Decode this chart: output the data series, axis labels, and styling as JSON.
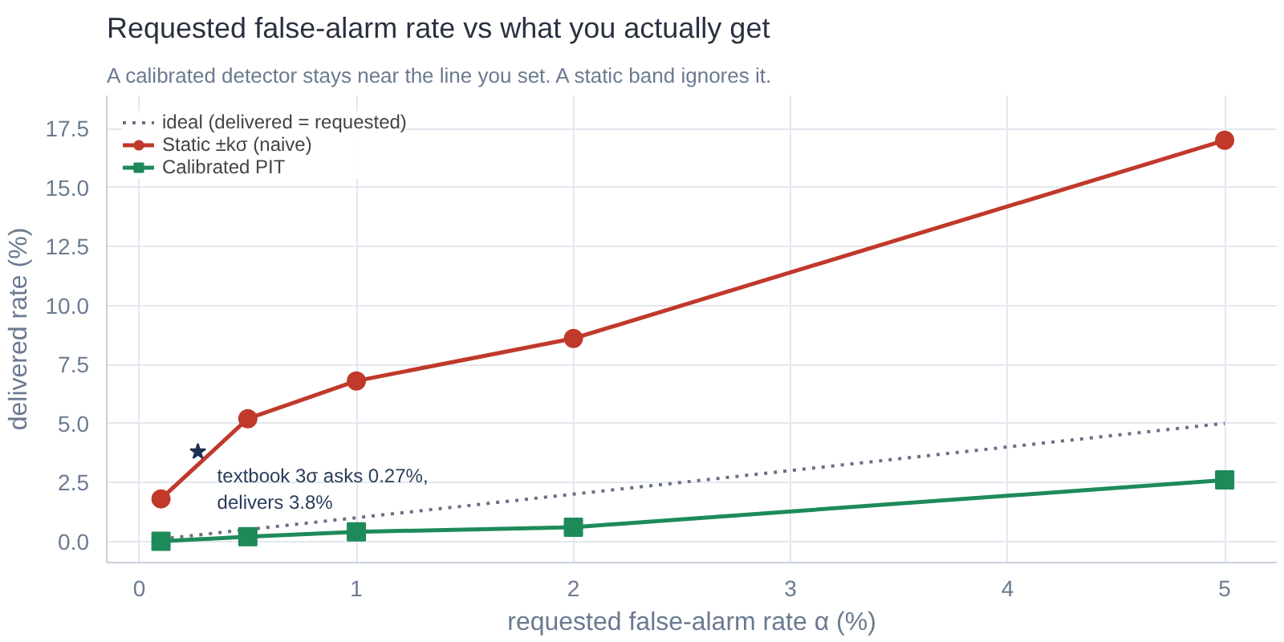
{
  "chart_data": {
    "type": "line",
    "title": "Requested false-alarm rate vs what you actually get",
    "subtitle": "A calibrated detector stays near the line you set. A static band ignores it.",
    "xlabel": "requested false-alarm rate α (%)",
    "ylabel": "delivered rate (%)",
    "x": [
      0.1,
      0.5,
      1,
      2,
      5
    ],
    "series": [
      {
        "name": "ideal (delivered = requested)",
        "color": "#6b6f85",
        "x": [
          0.1,
          5
        ],
        "values": [
          0.1,
          5
        ],
        "line_style": "dotted",
        "marker": "none"
      },
      {
        "name": "Static ±kσ (naive)",
        "color": "#c0392b",
        "values": [
          1.8,
          5.2,
          6.8,
          8.6,
          17.0
        ],
        "marker": "circle",
        "line_style": "solid"
      },
      {
        "name": "Calibrated PIT",
        "color": "#1e8a5a",
        "values": [
          0.0,
          0.2,
          0.4,
          0.6,
          2.6
        ],
        "marker": "square",
        "line_style": "solid"
      }
    ],
    "annotations": [
      {
        "text": "textbook 3σ asks 0.27%,\ndelivers 3.8%",
        "x": 0.27,
        "y": 3.8
      }
    ],
    "xlim": [
      -0.15,
      5.24
    ],
    "ylim": [
      -0.9,
      18.9
    ],
    "xticks": [
      0,
      1,
      2,
      3,
      4,
      5
    ],
    "yticks": [
      {
        "value": 0,
        "label": "0.0"
      },
      {
        "value": 2.5,
        "label": "2.5"
      },
      {
        "value": 5,
        "label": "5.0"
      },
      {
        "value": 7.5,
        "label": "7.5"
      },
      {
        "value": 10,
        "label": "10.0"
      },
      {
        "value": 12.5,
        "label": "12.5"
      },
      {
        "value": 15,
        "label": "15.0"
      },
      {
        "value": 17.5,
        "label": "17.5"
      }
    ],
    "grid": true,
    "legend": "top left"
  }
}
